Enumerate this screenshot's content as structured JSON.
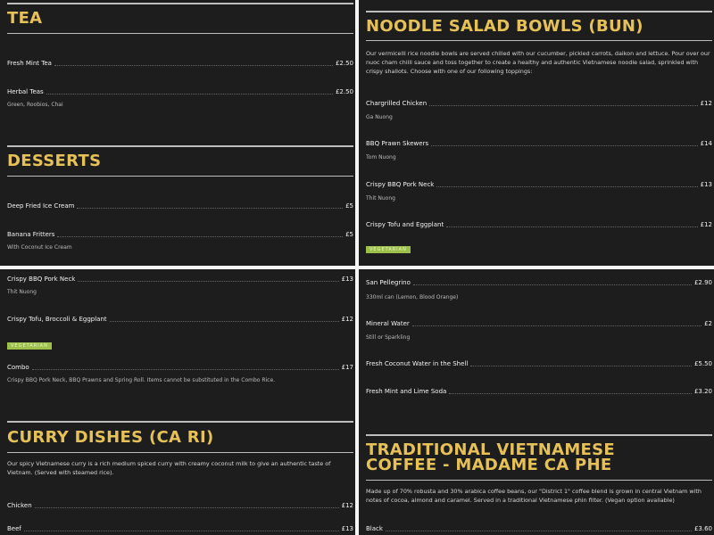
{
  "colors": {
    "background": "#1d1d1d",
    "heading": "#e6c158",
    "badge": "#9cc04a"
  },
  "panel1": {
    "tea": {
      "title": "TEA",
      "items": [
        {
          "name": "Fresh Mint Tea",
          "price": "£2.50"
        },
        {
          "name": "Herbal Teas",
          "price": "£2.50",
          "sub": "Green, Roobios, Chai"
        }
      ]
    },
    "desserts": {
      "title": "DESSERTS",
      "items": [
        {
          "name": "Deep Fried Ice Cream",
          "price": "£5"
        },
        {
          "name": "Banana Fritters",
          "price": "£5",
          "sub": "With Coconut Ice Cream"
        }
      ]
    }
  },
  "panel2": {
    "title": "NOODLE SALAD BOWLS (BUN)",
    "description": "Our vermicelli rice noodle bowls are served chilled with our cucumber, pickled carrots, daikon and lettuce. Pour over our nuoc cham chilli sauce and toss together to create a healthy and authentic Vietnamese noodle salad, sprinkled with crispy shallots. Choose with one of our following toppings:",
    "items": [
      {
        "name": "Chargrilled Chicken",
        "price": "£12",
        "sub": "Ga Nuong"
      },
      {
        "name": "BBQ Prawn Skewers",
        "price": "£14",
        "sub": "Tom Nuong"
      },
      {
        "name": "Crispy BBQ Pork Neck",
        "price": "£13",
        "sub": "Thit Nuong"
      },
      {
        "name": "Crispy Tofu and Eggplant",
        "price": "£12",
        "badge": "VEGETARIAN"
      }
    ]
  },
  "panel3": {
    "items": [
      {
        "name": "Crispy BBQ Pork Neck",
        "price": "£13",
        "sub": "Thit Nuong"
      },
      {
        "name": "Crispy Tofu, Broccoli & Eggplant",
        "price": "£12",
        "badge": "VEGETARIAN"
      },
      {
        "name": "Combo",
        "price": "£17",
        "sub": "Crispy BBQ Pork Neck, BBQ Prawns and Spring Roll. Items cannot be substituted in the Combo Rice."
      }
    ],
    "curry": {
      "title": "CURRY DISHES (CA RI)",
      "description": "Our spicy Vietnamese curry is a rich medium spiced curry with creamy coconut milk to give an authentic taste of Vietnam. (Served with steamed rice).",
      "items": [
        {
          "name": "Chicken",
          "price": "£12"
        },
        {
          "name": "Beef",
          "price": "£13"
        }
      ]
    }
  },
  "panel4": {
    "items": [
      {
        "name": "San Pellegrino",
        "price": "£2.90",
        "sub": "330ml can (Lemon, Blood Orange)"
      },
      {
        "name": "Mineral Water",
        "price": "£2",
        "sub": "Still or Sparkling"
      },
      {
        "name": "Fresh Coconut Water in the Shell",
        "price": "£5.50"
      },
      {
        "name": "Fresh Mint and Lime Soda",
        "price": "£3.20"
      }
    ],
    "coffee": {
      "title": "TRADITIONAL VIETNAMESE COFFEE - MADAME CA PHE",
      "description": "Made up of 70% robusta and 30% arabica coffee beans, our \"District 1\" coffee blend is grown in central Vietnam with notes of cocoa, almond and caramel. Served in a traditional Vietnamese phin filter. (Vegan option available)",
      "items": [
        {
          "name": "Black",
          "price": "£3.60"
        }
      ]
    }
  }
}
